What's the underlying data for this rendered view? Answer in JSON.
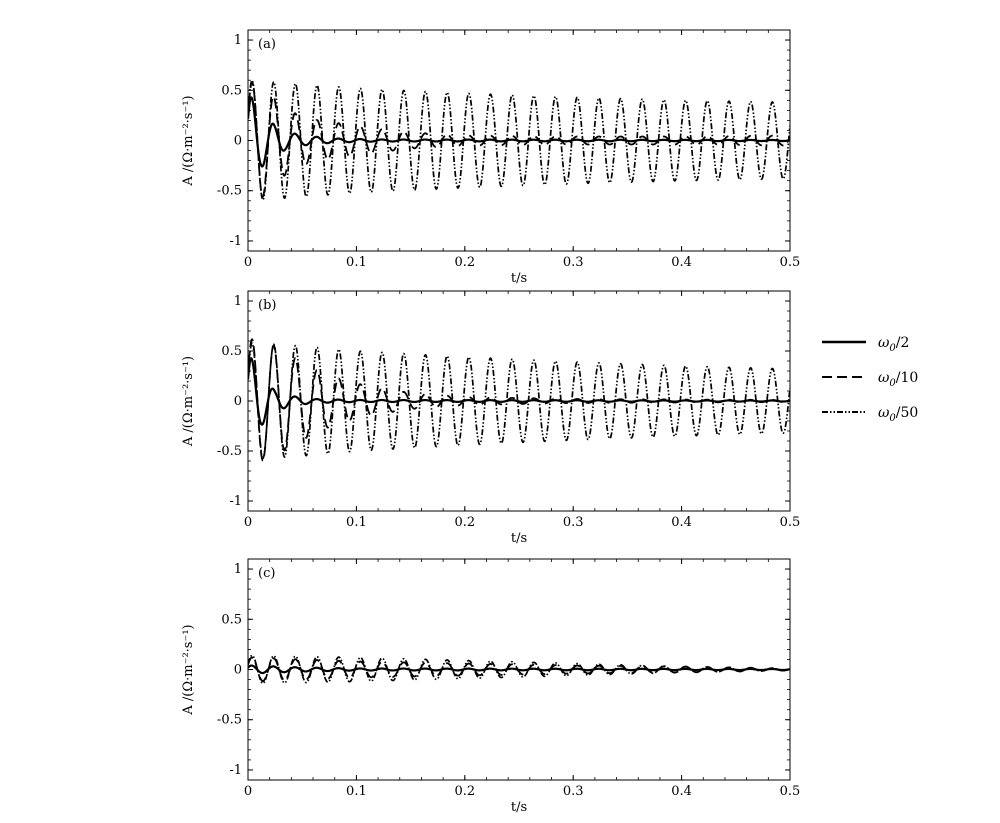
{
  "chart_data": [
    {
      "type": "line",
      "panel_label": "(a)",
      "xlabel": "t/s",
      "ylabel": "A /(Ω·m⁻²·s⁻¹)",
      "xlim": [
        0,
        0.5
      ],
      "ylim": [
        -1.1,
        1.1
      ],
      "xticks": [
        0,
        0.1,
        0.2,
        0.3,
        0.4,
        0.5
      ],
      "yticks": [
        1,
        0.5,
        0,
        -0.5,
        -1
      ],
      "xticklabels": [
        "0",
        "0.1",
        "0.2",
        "0.3",
        "0.4",
        "0.5"
      ],
      "yticklabels": [
        "1",
        "0.5",
        "0",
        "-0.5",
        "-1"
      ],
      "series": [
        {
          "name": "ω₀/2",
          "style": "solid",
          "freq_hz": 50,
          "amp_peaks": [
            [
              0.002,
              0.45
            ],
            [
              0.012,
              -0.27
            ],
            [
              0.025,
              0.15
            ],
            [
              0.035,
              -0.09
            ],
            [
              0.05,
              0.05
            ],
            [
              0.08,
              0.02
            ],
            [
              0.12,
              0.01
            ],
            [
              0.5,
              0.005
            ]
          ]
        },
        {
          "name": "ω₀/10",
          "style": "dashed",
          "freq_hz": 50,
          "amp_peaks": [
            [
              0.002,
              0.58
            ],
            [
              0.012,
              -0.58
            ],
            [
              0.025,
              0.42
            ],
            [
              0.045,
              0.26
            ],
            [
              0.065,
              0.2
            ],
            [
              0.085,
              0.17
            ],
            [
              0.11,
              0.13
            ],
            [
              0.15,
              0.08
            ],
            [
              0.2,
              0.05
            ],
            [
              0.3,
              0.04
            ],
            [
              0.4,
              0.04
            ],
            [
              0.5,
              0.05
            ]
          ]
        },
        {
          "name": "ω₀/50",
          "style": "dash-dot-dot",
          "freq_hz": 50,
          "amp_peaks": [
            [
              0.002,
              0.6
            ],
            [
              0.05,
              0.56
            ],
            [
              0.1,
              0.52
            ],
            [
              0.2,
              0.47
            ],
            [
              0.3,
              0.43
            ],
            [
              0.4,
              0.4
            ],
            [
              0.5,
              0.38
            ]
          ]
        }
      ]
    },
    {
      "type": "line",
      "panel_label": "(b)",
      "xlabel": "t/s",
      "ylabel": "A /(Ω·m⁻²·s⁻¹)",
      "xlim": [
        0,
        0.5
      ],
      "ylim": [
        -1.1,
        1.1
      ],
      "xticks": [
        0,
        0.1,
        0.2,
        0.3,
        0.4,
        0.5
      ],
      "yticks": [
        1,
        0.5,
        0,
        -0.5,
        -1
      ],
      "xticklabels": [
        "0",
        "0.1",
        "0.2",
        "0.3",
        "0.4",
        "0.5"
      ],
      "yticklabels": [
        "1",
        "0.5",
        "0",
        "-0.5",
        "-1"
      ],
      "series": [
        {
          "name": "ω₀/2",
          "style": "solid",
          "freq_hz": 50,
          "amp_peaks": [
            [
              0.002,
              0.45
            ],
            [
              0.012,
              -0.25
            ],
            [
              0.025,
              0.1
            ],
            [
              0.04,
              0.05
            ],
            [
              0.06,
              0.02
            ],
            [
              0.1,
              0.01
            ],
            [
              0.5,
              0.005
            ]
          ]
        },
        {
          "name": "ω₀/10",
          "style": "dashed",
          "freq_hz": 50,
          "amp_peaks": [
            [
              0.002,
              0.62
            ],
            [
              0.012,
              -0.6
            ],
            [
              0.025,
              0.55
            ],
            [
              0.045,
              0.42
            ],
            [
              0.065,
              0.3
            ],
            [
              0.085,
              0.22
            ],
            [
              0.11,
              0.15
            ],
            [
              0.15,
              0.08
            ],
            [
              0.2,
              0.04
            ],
            [
              0.3,
              0.02
            ],
            [
              0.5,
              0.01
            ]
          ]
        },
        {
          "name": "ω₀/50",
          "style": "dash-dot-dot",
          "freq_hz": 50,
          "amp_peaks": [
            [
              0.002,
              0.58
            ],
            [
              0.05,
              0.55
            ],
            [
              0.1,
              0.5
            ],
            [
              0.2,
              0.44
            ],
            [
              0.3,
              0.39
            ],
            [
              0.4,
              0.35
            ],
            [
              0.5,
              0.32
            ]
          ]
        }
      ]
    },
    {
      "type": "line",
      "panel_label": "(c)",
      "xlabel": "t/s",
      "ylabel": "A /(Ω·m⁻²·s⁻¹)",
      "xlim": [
        0,
        0.5
      ],
      "ylim": [
        -1.1,
        1.1
      ],
      "xticks": [
        0,
        0.1,
        0.2,
        0.3,
        0.4,
        0.5
      ],
      "yticks": [
        1,
        0.5,
        0,
        -0.5,
        -1
      ],
      "xticklabels": [
        "0",
        "0.1",
        "0.2",
        "0.3",
        "0.4",
        "0.5"
      ],
      "yticklabels": [
        "1",
        "0.5",
        "0",
        "-0.5",
        "-1"
      ],
      "series": [
        {
          "name": "ω₀/2",
          "style": "solid",
          "freq_hz": 50,
          "amp_peaks": [
            [
              0.002,
              0.04
            ],
            [
              0.05,
              0.02
            ],
            [
              0.1,
              0.01
            ],
            [
              0.5,
              0.005
            ]
          ]
        },
        {
          "name": "ω₀/10",
          "style": "dashed",
          "freq_hz": 50,
          "amp_peaks": [
            [
              0.002,
              0.12
            ],
            [
              0.05,
              0.1
            ],
            [
              0.1,
              0.08
            ],
            [
              0.2,
              0.06
            ],
            [
              0.3,
              0.04
            ],
            [
              0.4,
              0.03
            ],
            [
              0.5,
              0.01
            ]
          ]
        },
        {
          "name": "ω₀/50",
          "style": "dash-dot-dot",
          "freq_hz": 50,
          "amp_peaks": [
            [
              0.002,
              0.14
            ],
            [
              0.1,
              0.12
            ],
            [
              0.2,
              0.09
            ],
            [
              0.3,
              0.06
            ],
            [
              0.4,
              0.03
            ],
            [
              0.5,
              0.01
            ]
          ]
        }
      ]
    }
  ],
  "legend": {
    "placement": "right",
    "entries": [
      {
        "label_base": "ω",
        "label_sub": "0",
        "label_rest": "/2",
        "style": "solid"
      },
      {
        "label_base": "ω",
        "label_sub": "0",
        "label_rest": "/10",
        "style": "dashed"
      },
      {
        "label_base": "ω",
        "label_sub": "0",
        "label_rest": "/50",
        "style": "dash-dot-dot"
      }
    ]
  },
  "colors": {
    "line": "#000000",
    "background": "#ffffff"
  }
}
